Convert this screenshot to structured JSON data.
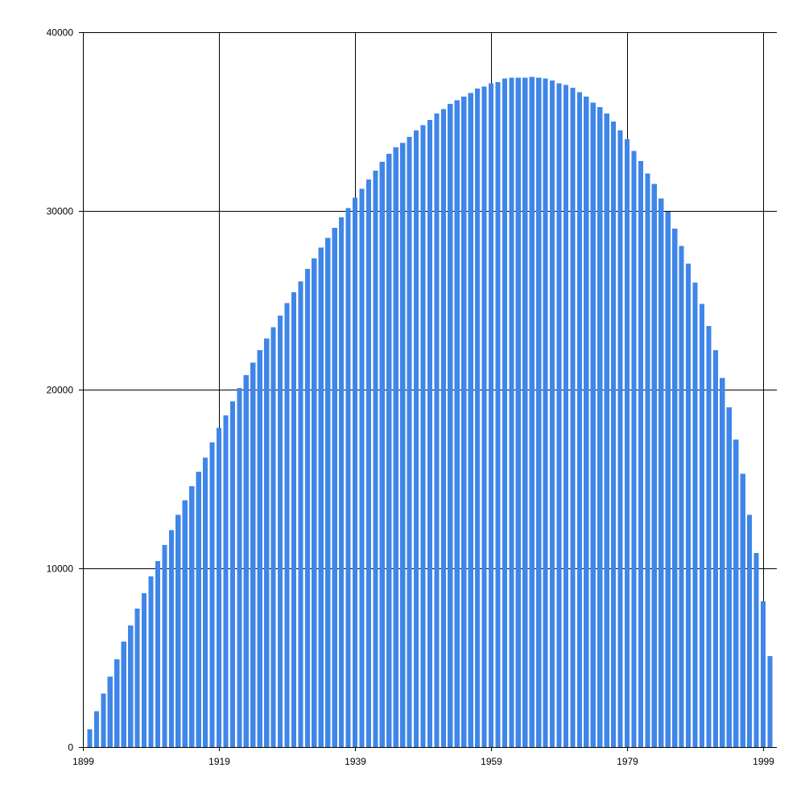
{
  "chart_data": {
    "type": "bar",
    "title": "",
    "xlabel": "",
    "ylabel": "",
    "bar_color": "#3f86e8",
    "grid": true,
    "xlim": [
      1899,
      2000
    ],
    "ylim": [
      0,
      40000
    ],
    "x_ticks": [
      "1899",
      "1919",
      "1939",
      "1959",
      "1979",
      "1999"
    ],
    "y_ticks": [
      "0",
      "10000",
      "20000",
      "30000",
      "40000"
    ],
    "x": [
      1900,
      1901,
      1902,
      1903,
      1904,
      1905,
      1906,
      1907,
      1908,
      1909,
      1910,
      1911,
      1912,
      1913,
      1914,
      1915,
      1916,
      1917,
      1918,
      1919,
      1920,
      1921,
      1922,
      1923,
      1924,
      1925,
      1926,
      1927,
      1928,
      1929,
      1930,
      1931,
      1932,
      1933,
      1934,
      1935,
      1936,
      1937,
      1938,
      1939,
      1940,
      1941,
      1942,
      1943,
      1944,
      1945,
      1946,
      1947,
      1948,
      1949,
      1950,
      1951,
      1952,
      1953,
      1954,
      1955,
      1956,
      1957,
      1958,
      1959,
      1960,
      1961,
      1962,
      1963,
      1964,
      1965,
      1966,
      1967,
      1968,
      1969,
      1970,
      1971,
      1972,
      1973,
      1974,
      1975,
      1976,
      1977,
      1978,
      1979,
      1980,
      1981,
      1982,
      1983,
      1984,
      1985,
      1986,
      1987,
      1988,
      1989,
      1990,
      1991,
      1992,
      1993,
      1994,
      1995,
      1996,
      1997,
      1998,
      1999,
      2000
    ],
    "values": [
      1000,
      2000,
      3000,
      3950,
      4900,
      5900,
      6800,
      7750,
      8600,
      9550,
      10400,
      11300,
      12150,
      13000,
      13800,
      14600,
      15400,
      16200,
      17050,
      17850,
      18550,
      19350,
      20100,
      20800,
      21500,
      22200,
      22850,
      23500,
      24150,
      24850,
      25450,
      26050,
      26750,
      27350,
      27950,
      28500,
      29050,
      29650,
      30150,
      30750,
      31250,
      31750,
      32250,
      32750,
      33200,
      33550,
      33800,
      34150,
      34500,
      34800,
      35100,
      35450,
      35700,
      36000,
      36200,
      36400,
      36600,
      36850,
      36950,
      37150,
      37200,
      37400,
      37450,
      37450,
      37450,
      37500,
      37450,
      37400,
      37300,
      37150,
      37050,
      36900,
      36650,
      36400,
      36050,
      35800,
      35450,
      35000,
      34500,
      34000,
      33350,
      32800,
      32100,
      31500,
      30700,
      29950,
      29000,
      28050,
      27050,
      26000,
      24800,
      23550,
      22200,
      20650,
      19000,
      17200,
      15300,
      13000,
      10850,
      8150,
      5100
    ]
  }
}
